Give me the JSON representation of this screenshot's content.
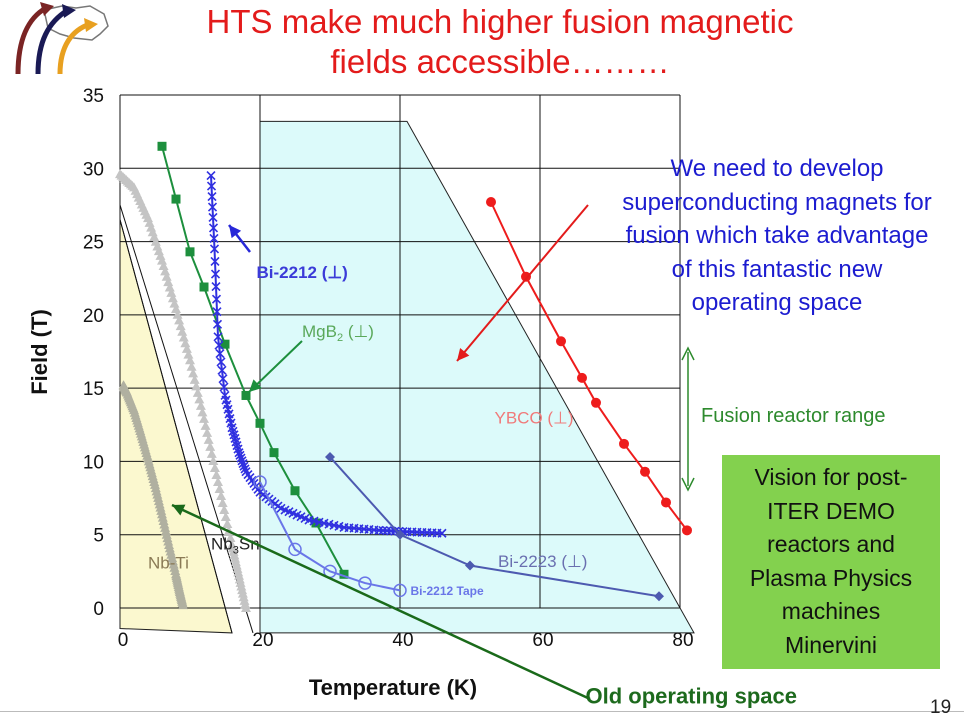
{
  "slide": {
    "title_line1": "HTS make much higher fusion magnetic",
    "title_line2": "fields accessible………",
    "page_number": "19",
    "callout_lines": [
      "We need to develop",
      "superconducting magnets for",
      "fusion which take advantage",
      "of this fantastic new",
      "operating space"
    ],
    "vision_lines": [
      "Vision for post-",
      "ITER DEMO",
      "reactors and",
      "Plasma Physics",
      "machines",
      "Minervini"
    ],
    "colors": {
      "title": "#e31b1b",
      "callout": "#1c1cd0",
      "vision_box": "#83d14e",
      "fusion_range": "#2d8a2d",
      "old_space_fill": "#fbf8cf",
      "new_space_fill": "#dcfafa"
    }
  },
  "chart_data": {
    "type": "line",
    "xlabel": "Temperature (K)",
    "ylabel": "Field (T)",
    "xlim": [
      0,
      80
    ],
    "ylim": [
      0,
      35
    ],
    "x_ticks": [
      0,
      20,
      40,
      60,
      80
    ],
    "y_ticks": [
      0,
      5,
      10,
      15,
      20,
      25,
      30,
      35
    ],
    "grid": true,
    "regions": [
      {
        "name": "old",
        "polygon": [
          [
            0,
            26.5
          ],
          [
            0,
            -1.4
          ],
          [
            16,
            -1.7
          ]
        ],
        "color": "#fbf8cf"
      },
      {
        "name": "new",
        "polygon": [
          [
            20,
            33.2
          ],
          [
            41,
            33.2
          ],
          [
            82,
            -1.7
          ],
          [
            20,
            -1.7
          ]
        ],
        "color": "#dcfafa"
      }
    ],
    "series": [
      {
        "name": "Nb-Ti",
        "color": "#b0b0a0",
        "marker": "triangle",
        "x": [
          0.5,
          1,
          2,
          3,
          4,
          5,
          6,
          7,
          8,
          8.5,
          9
        ],
        "y": [
          15.2,
          14.7,
          13.5,
          11.9,
          10.2,
          8.4,
          6.4,
          4.3,
          2.3,
          1.2,
          0.2
        ]
      },
      {
        "name": "Nb3Sn",
        "color": "#c4c4c4",
        "marker": "triangle",
        "x": [
          0,
          2,
          4,
          6,
          8,
          10,
          12,
          14,
          16,
          17,
          18
        ],
        "y": [
          29.6,
          28.7,
          26.6,
          23.7,
          20.4,
          16.9,
          12.9,
          8.6,
          4.3,
          2.2,
          0
        ]
      },
      {
        "name": "MgB2",
        "color": "#1d8f3d",
        "marker": "square",
        "x": [
          6,
          8,
          10,
          12,
          15,
          18,
          20,
          22,
          25,
          28,
          32
        ],
        "y": [
          31.5,
          27.9,
          24.3,
          21.9,
          18,
          14.5,
          12.6,
          10.6,
          8,
          5.8,
          2.3
        ]
      },
      {
        "name": "Bi-2212",
        "color": "#3030e0",
        "marker": "x",
        "x": [
          13,
          13.5,
          14,
          15,
          16,
          17,
          18,
          20,
          23,
          27,
          32,
          37,
          41,
          46
        ],
        "y": [
          29.5,
          24.5,
          18.5,
          14.5,
          12.3,
          10.6,
          9.3,
          7.9,
          6.8,
          6,
          5.5,
          5.3,
          5.2,
          5.1
        ]
      },
      {
        "name": "Bi-2212 Tape",
        "color": "#6a76e8",
        "marker": "open-circle",
        "x": [
          20,
          25,
          30,
          35,
          40
        ],
        "y": [
          8.6,
          4,
          2.5,
          1.7,
          1.2
        ]
      },
      {
        "name": "Bi-2223",
        "color": "#4d5ab0",
        "marker": "diamond",
        "x": [
          30,
          40,
          50,
          77
        ],
        "y": [
          10.3,
          5,
          2.9,
          0.8
        ]
      },
      {
        "name": "YBCO",
        "color": "#ee1c1c",
        "marker": "dot",
        "x": [
          53,
          58,
          63,
          66,
          68,
          72,
          75,
          78,
          81
        ],
        "y": [
          27.7,
          22.6,
          18.2,
          15.7,
          14,
          11.2,
          9.3,
          7.2,
          5.3
        ]
      }
    ],
    "annotations": [
      {
        "name": "nbti-label",
        "text": "Nb-Ti",
        "x": 4,
        "y": 2.7,
        "color": "#8a7a55"
      },
      {
        "name": "nb3sn-label",
        "text": "Nb",
        "sub": "3",
        "tail": "Sn",
        "x": 13,
        "y": 4,
        "color": "#222222"
      },
      {
        "name": "mgb2-label",
        "text": "MgB",
        "sub": "2",
        "tail": " (⊥)",
        "x": 26,
        "y": 18.5,
        "color": "#5aa85a"
      },
      {
        "name": "bi2212-label",
        "text": "Bi-2212 (⊥)",
        "x": 19.5,
        "y": 22.5,
        "color": "#3b3bd8"
      },
      {
        "name": "bi2212tape-label",
        "text": "Bi-2212 Tape",
        "x": 41.5,
        "y": 0.9,
        "color": "#6a76e8"
      },
      {
        "name": "bi2223-label",
        "text": "Bi-2223 (⊥)",
        "x": 54,
        "y": 2.8,
        "color": "#6a6fb0"
      },
      {
        "name": "ybco-label",
        "text": "YBCO (⊥)",
        "x": 53.5,
        "y": 12.6,
        "color": "#f07a7a"
      },
      {
        "name": "fusion-range-label",
        "text": "Fusion reactor range",
        "x": 83,
        "y": 12.7,
        "color": "#2d8a2d"
      },
      {
        "name": "old-space-label",
        "text": "Old operating space",
        "x": 66.5,
        "y": -6.5,
        "color": "#1d6a1d"
      }
    ]
  }
}
